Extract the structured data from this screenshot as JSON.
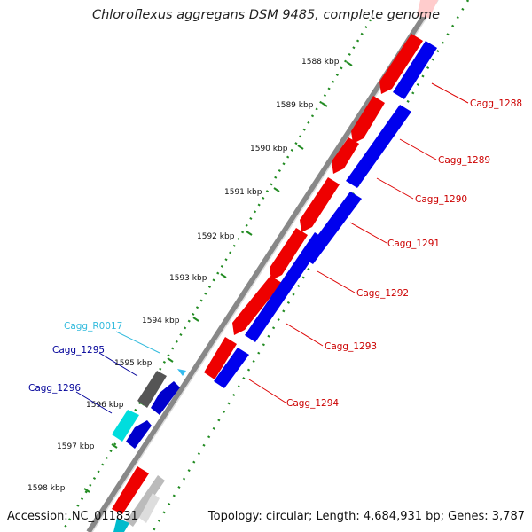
{
  "title": "Chloroflexus aggregans DSM 9485, complete genome",
  "accession": "Accession: NC_011831",
  "summary": "Topology: circular; Length: 4,684,931 bp; Genes: 3,787",
  "colors": {
    "forward_strand": "#ff0000",
    "reverse_strand": "#0000ee",
    "rna": "#33ccee",
    "pseudo_gray": "#666666",
    "tick_green": "#228b22",
    "backbone": "#888888"
  },
  "ticks": [
    "1588 kbp",
    "1589 kbp",
    "1590 kbp",
    "1591 kbp",
    "1592 kbp",
    "1593 kbp",
    "1594 kbp",
    "1595 kbp",
    "1596 kbp",
    "1597 kbp",
    "1598 kbp"
  ],
  "genes": [
    {
      "label": "Cagg_1288",
      "strand": "forward",
      "color": "#cc0000"
    },
    {
      "label": "Cagg_1289",
      "strand": "forward",
      "color": "#cc0000"
    },
    {
      "label": "Cagg_1290",
      "strand": "forward",
      "color": "#cc0000"
    },
    {
      "label": "Cagg_1291",
      "strand": "forward",
      "color": "#cc0000"
    },
    {
      "label": "Cagg_1292",
      "strand": "forward",
      "color": "#cc0000"
    },
    {
      "label": "Cagg_1293",
      "strand": "forward",
      "color": "#cc0000"
    },
    {
      "label": "Cagg_1294",
      "strand": "forward",
      "color": "#cc0000"
    },
    {
      "label": "Cagg_R0017",
      "strand": "reverse",
      "color": "#33bbdd"
    },
    {
      "label": "Cagg_1295",
      "strand": "reverse",
      "color": "#000099"
    },
    {
      "label": "Cagg_1296",
      "strand": "reverse",
      "color": "#000099"
    }
  ]
}
